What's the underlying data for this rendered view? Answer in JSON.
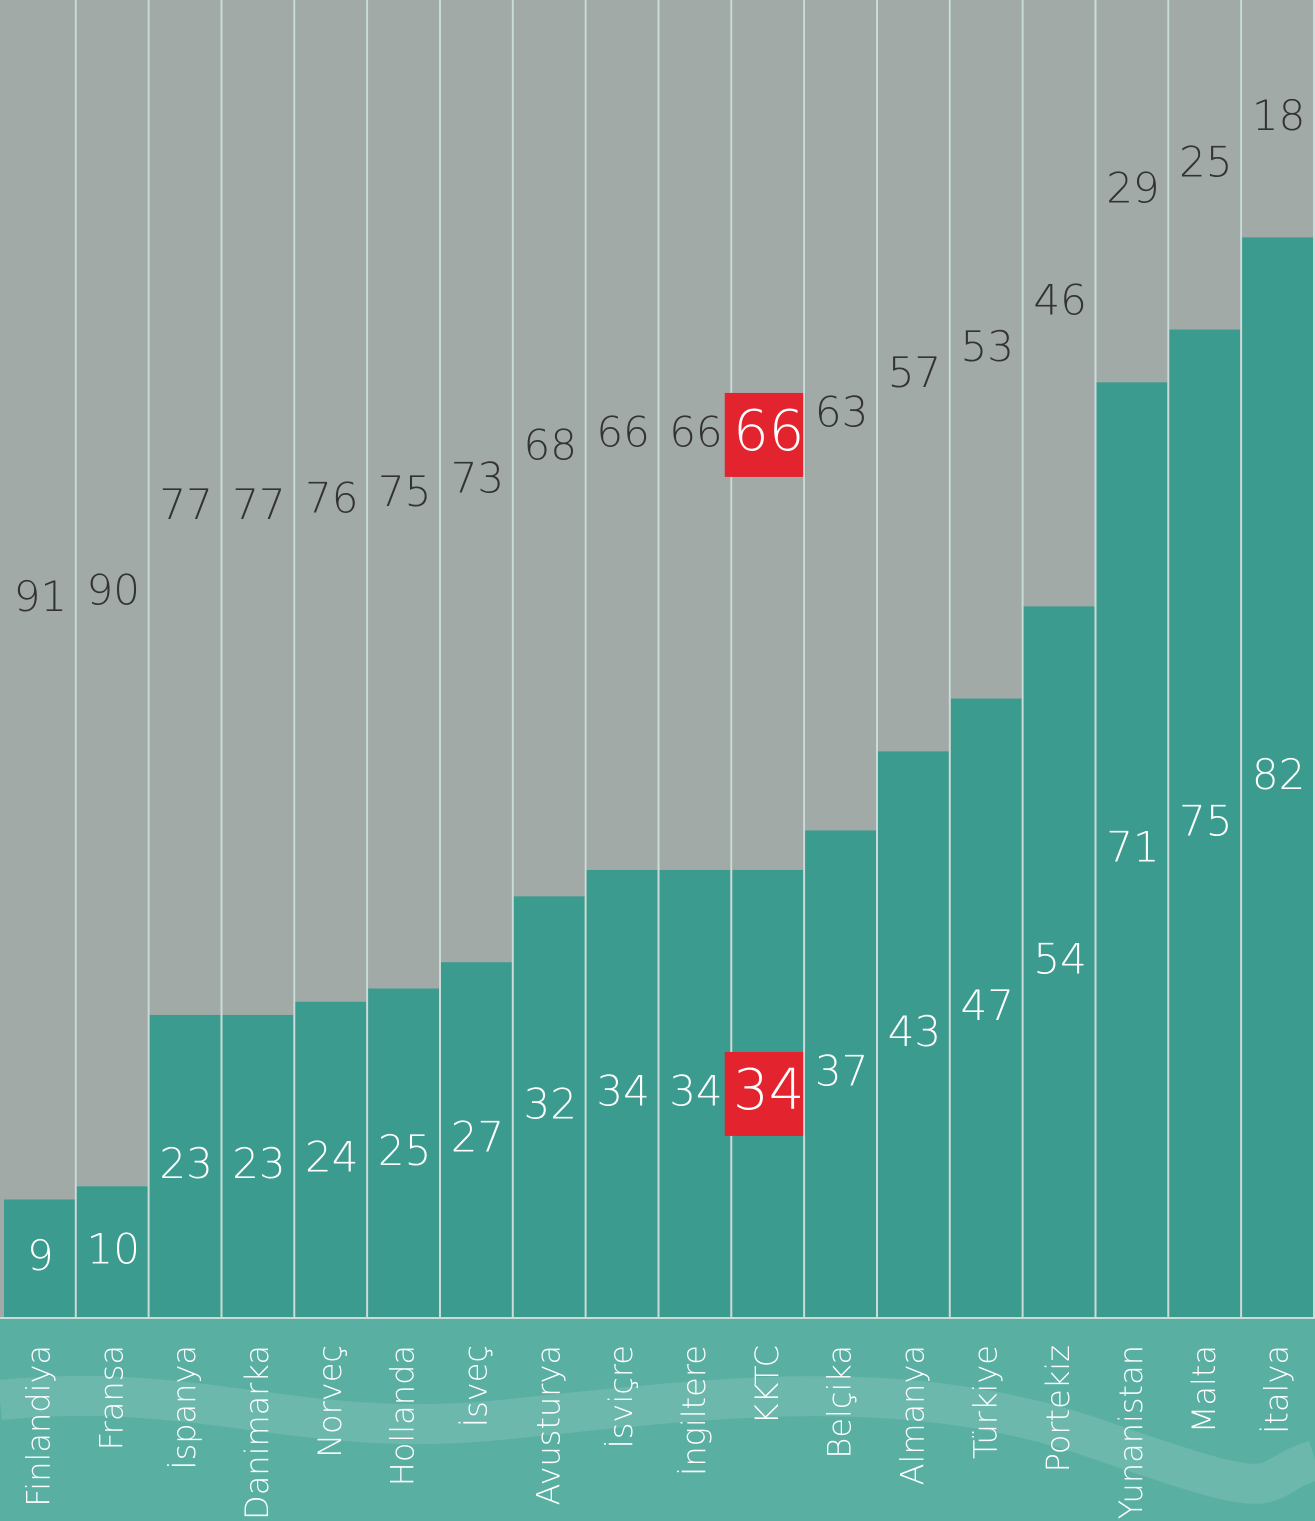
{
  "chart_data": {
    "type": "stacked-bar",
    "categories": [
      "Finlandiya",
      "Fransa",
      "İspanya",
      "Danimarka",
      "Norveç",
      "Hollanda",
      "İsveç",
      "Avusturya",
      "İsviçre",
      "İngiltere",
      "KKTC",
      "Belçika",
      "Almanya",
      "Türkiye",
      "Portekiz",
      "Yunanistan",
      "Malta",
      "İtalya"
    ],
    "series": [
      {
        "color": "#3a9b8e",
        "label_color": "#ffffff",
        "values": [
          9,
          10,
          23,
          23,
          24,
          25,
          27,
          32,
          34,
          34,
          34,
          37,
          43,
          47,
          54,
          71,
          75,
          82
        ]
      },
      {
        "color": "#a2aaa7",
        "label_color": "#333333",
        "values": [
          91,
          90,
          77,
          77,
          76,
          75,
          73,
          68,
          66,
          66,
          66,
          63,
          57,
          53,
          46,
          29,
          25,
          18
        ]
      }
    ],
    "ylim": [
      0,
      100
    ],
    "highlight_category": "KKTC",
    "highlight_color": "#e3242f"
  }
}
